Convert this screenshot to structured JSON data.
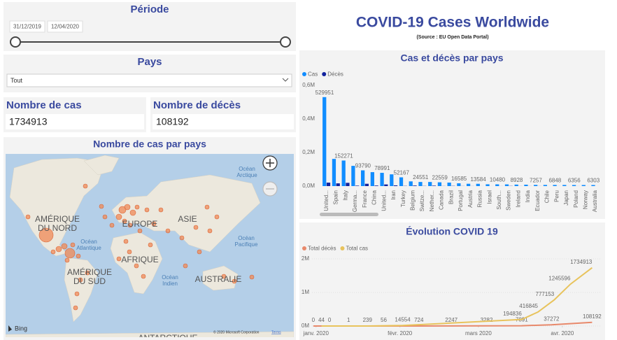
{
  "header": {
    "title": "COVID-19 Cases Worldwide",
    "subtitle": "(Source : EU Open Data Portal)"
  },
  "period": {
    "title": "Période",
    "start": "31/12/2019",
    "end": "12/04/2020"
  },
  "country": {
    "title": "Pays",
    "selected": "Tout"
  },
  "cards": [
    {
      "label": "Nombre de cas",
      "value": 1734913
    },
    {
      "label": "Nombre de décès",
      "value": 108192
    }
  ],
  "map": {
    "title": "Nombre de cas par pays",
    "labels": [
      {
        "lines": [
          "Océan",
          "Arctique"
        ]
      },
      {
        "lines": [
          "AMÉRIQUE",
          "DU NORD"
        ]
      },
      {
        "lines": [
          "EUROPE"
        ]
      },
      {
        "lines": [
          "ASIE"
        ]
      },
      {
        "lines": [
          "Océan",
          "Atlantique"
        ]
      },
      {
        "lines": [
          "Océan",
          "Pacifique"
        ]
      },
      {
        "lines": [
          "AFRIQUE"
        ]
      },
      {
        "lines": [
          "AMÉRIQUE",
          "DU SUD"
        ]
      },
      {
        "lines": [
          "Océan",
          "Indien"
        ]
      },
      {
        "lines": [
          "AUSTRALIE"
        ]
      },
      {
        "lines": [
          "ANTARCTIQUE"
        ]
      }
    ],
    "provider": "Bing",
    "copyright": "© 2020 Microsoft Corporation",
    "terms": "Terms"
  },
  "chart_data": [
    {
      "type": "bar",
      "title": "Cas et décès par pays",
      "categories": [
        "United...",
        "Spain",
        "Italy",
        "Germa...",
        "France",
        "China",
        "United...",
        "Iran",
        "Turkey",
        "Belgium",
        "Switze...",
        "Nether...",
        "Canada",
        "Brazil",
        "Portugal",
        "Austria",
        "Russia",
        "Israel",
        "South...",
        "Sweden",
        "Ireland",
        "India",
        "Ecuador",
        "Chile",
        "Peru",
        "Japan",
        "Poland",
        "Norway",
        "Australia"
      ],
      "series": [
        {
          "name": "Cas",
          "color": "#118dff",
          "values": [
            529951,
            161852,
            152271,
            120479,
            93790,
            83097,
            78991,
            70029,
            52167,
            28018,
            24551,
            24413,
            22559,
            20727,
            16585,
            13807,
            13584,
            10743,
            10480,
            10151,
            8928,
            8356,
            7257,
            6927,
            6848,
            6748,
            6356,
            6320,
            6303
          ]
        },
        {
          "name": "Décès",
          "color": "#12239e",
          "values": [
            20608,
            16353,
            19468,
            2673,
            13832,
            3343,
            9875,
            4357,
            1101,
            3346,
            908,
            2643,
            560,
            1124,
            504,
            337,
            106,
            101,
            211,
            887,
            320,
            273,
            315,
            73,
            181,
            108,
            208,
            119,
            57
          ]
        }
      ],
      "ylim": [
        0,
        600000
      ],
      "yticks": [
        {
          "value": 0,
          "label": "0,0M"
        },
        {
          "value": 200000,
          "label": "0,2M"
        },
        {
          "value": 400000,
          "label": "0,4M"
        },
        {
          "value": 600000,
          "label": "0,6M"
        }
      ],
      "legend": "top-left"
    },
    {
      "type": "line",
      "title": "Évolution COVID 19",
      "series": [
        {
          "name": "Total décès",
          "color": "#e8896b",
          "x": [
            0,
            6,
            13,
            26,
            39,
            51,
            64,
            77,
            88,
            103
          ],
          "values": [
            0,
            0,
            1,
            56,
            724,
            2247,
            3282,
            7891,
            37272,
            108192
          ]
        },
        {
          "name": "Total cas",
          "color": "#e8c35c",
          "x": [
            3,
            20,
            33,
            77,
            83,
            89,
            95,
            103
          ],
          "values": [
            44,
            239,
            14554,
            194836,
            416845,
            777153,
            1245596,
            1734913
          ]
        }
      ],
      "xlim": [
        -1,
        106
      ],
      "xticks": [
        {
          "value": 1,
          "label": "janv. 2020"
        },
        {
          "value": 32,
          "label": "févr. 2020"
        },
        {
          "value": 61,
          "label": "mars 2020"
        },
        {
          "value": 92,
          "label": "avr. 2020"
        }
      ],
      "ylim": [
        0,
        2000000
      ],
      "yticks": [
        {
          "value": 0,
          "label": "0M"
        },
        {
          "value": 1000000,
          "label": "1M"
        },
        {
          "value": 2000000,
          "label": "2M"
        }
      ],
      "legend": "top-left"
    }
  ]
}
